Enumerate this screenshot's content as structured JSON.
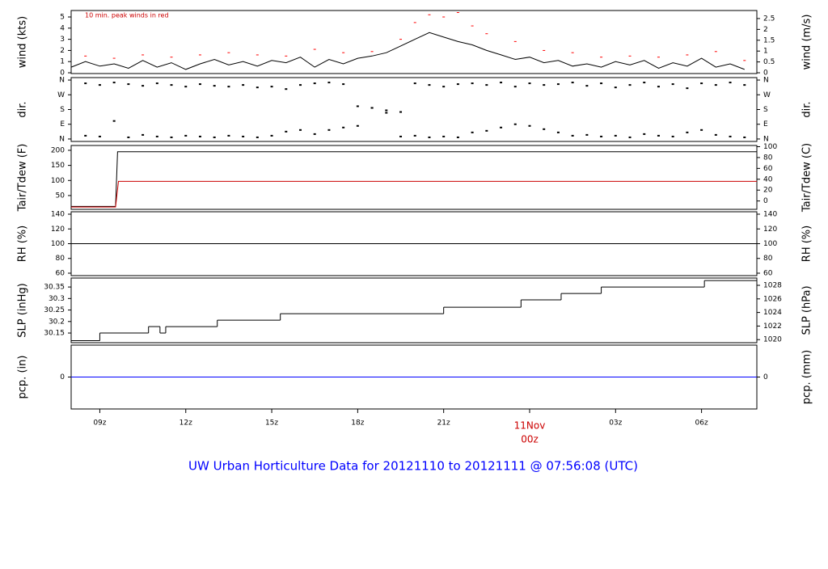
{
  "title": "UW Urban Horticulture Data for 20121110  to  20121111 @ 07:56:08  (UTC)",
  "chart_data": [
    {
      "type": "line",
      "ylabel": "wind (kts)",
      "y2label": "wind (m/s)",
      "annotation": "10 min. peak winds in red",
      "xlim": [
        8,
        31.93
      ],
      "ylim": [
        -0.07,
        5.58
      ],
      "yticks": [
        0,
        1,
        2,
        3,
        4,
        5
      ],
      "y2lim": [
        -0.036,
        2.87
      ],
      "y2ticks": [
        0,
        0.5,
        1,
        1.5,
        2,
        2.5
      ],
      "series": [
        {
          "style": "line",
          "color": "#000000",
          "x": [
            8,
            8.5,
            9,
            9.5,
            10,
            10.5,
            11,
            11.5,
            12,
            12.5,
            13,
            13.5,
            14,
            14.5,
            15,
            15.5,
            16,
            16.5,
            17,
            17.5,
            18,
            18.5,
            19,
            19.5,
            20,
            20.5,
            21,
            21.5,
            22,
            22.5,
            23,
            23.5,
            24,
            24.5,
            25,
            25.5,
            26,
            26.5,
            27,
            27.5,
            28,
            28.5,
            29,
            29.5,
            30,
            30.5,
            31,
            31.5
          ],
          "values": [
            0.5,
            1.0,
            0.6,
            0.8,
            0.4,
            1.1,
            0.5,
            0.9,
            0.3,
            0.8,
            1.2,
            0.7,
            1.0,
            0.6,
            1.1,
            0.9,
            1.4,
            0.5,
            1.2,
            0.8,
            1.3,
            1.5,
            1.8,
            2.4,
            3.0,
            3.6,
            3.2,
            2.8,
            2.5,
            2.0,
            1.6,
            1.2,
            1.4,
            0.9,
            1.1,
            0.6,
            0.8,
            0.5,
            1.0,
            0.7,
            1.1,
            0.4,
            0.9,
            0.6,
            1.3,
            0.5,
            0.8,
            0.3
          ]
        },
        {
          "style": "dash",
          "color": "#ff0000",
          "x": [
            8.5,
            9.5,
            10.5,
            11.5,
            12.5,
            13.5,
            14.5,
            15.5,
            16.5,
            17.5,
            18.5,
            19.5,
            20,
            20.5,
            21,
            21.5,
            22,
            22.5,
            23.5,
            24.5,
            25.5,
            26.5,
            27.5,
            28.5,
            29.5,
            30.5,
            31.5
          ],
          "values": [
            1.5,
            1.3,
            1.6,
            1.4,
            1.6,
            1.8,
            1.6,
            1.5,
            2.1,
            1.8,
            1.9,
            3.0,
            4.5,
            5.2,
            5.0,
            5.4,
            4.2,
            3.5,
            2.8,
            2.0,
            1.8,
            1.4,
            1.5,
            1.4,
            1.6,
            1.9,
            1.1
          ]
        }
      ]
    },
    {
      "type": "scatter",
      "ylabel": "dir.",
      "y2label": "dir.",
      "xlim": [
        8,
        31.93
      ],
      "ylim": [
        -15,
        375
      ],
      "yticks": [
        {
          "value": 0,
          "label": "N"
        },
        {
          "value": 90,
          "label": "E"
        },
        {
          "value": 180,
          "label": "S"
        },
        {
          "value": 270,
          "label": "W"
        },
        {
          "value": 360,
          "label": "N"
        }
      ],
      "y2lim": [
        -15,
        375
      ],
      "y2ticks": [
        {
          "value": 0,
          "label": "N"
        },
        {
          "value": 90,
          "label": "E"
        },
        {
          "value": 180,
          "label": "S"
        },
        {
          "value": 270,
          "label": "W"
        },
        {
          "value": 360,
          "label": "N"
        }
      ],
      "series": [
        {
          "style": "dot",
          "color": "#000000",
          "x": [
            8.5,
            9,
            9.5,
            10,
            10.5,
            11,
            11.5,
            12,
            12.5,
            13,
            13.5,
            14,
            14.5,
            15,
            15.5,
            16,
            16.5,
            17,
            17.5,
            18,
            18.5,
            19,
            19.5,
            20,
            20.5,
            21,
            21.5,
            22,
            22.5,
            23,
            23.5,
            24,
            24.5,
            25,
            25.5,
            26,
            26.5,
            27,
            27.5,
            28,
            28.5,
            29,
            29.5,
            30,
            30.5,
            31,
            31.5
          ],
          "values": [
            340,
            330,
            345,
            335,
            325,
            340,
            330,
            320,
            335,
            325,
            320,
            330,
            315,
            320,
            305,
            330,
            340,
            345,
            335,
            200,
            190,
            175,
            165,
            340,
            330,
            320,
            335,
            340,
            330,
            345,
            320,
            340,
            330,
            335,
            345,
            325,
            340,
            315,
            330,
            345,
            320,
            335,
            310,
            340,
            330,
            345,
            330
          ]
        },
        {
          "style": "dot",
          "color": "#000000",
          "x": [
            8.5,
            9,
            9.5,
            10,
            10.5,
            11,
            11.5,
            12,
            12.5,
            13,
            13.5,
            14,
            14.5,
            15,
            15.5,
            16,
            16.5,
            17,
            17.5,
            18,
            18.5,
            19,
            19.5,
            20,
            20.5,
            21,
            21.5,
            22,
            22.5,
            23,
            23.5,
            24,
            24.5,
            25,
            25.5,
            26,
            26.5,
            27,
            27.5,
            28,
            28.5,
            29,
            29.5,
            30,
            30.5,
            31,
            31.5
          ],
          "values": [
            20,
            15,
            110,
            10,
            25,
            15,
            10,
            20,
            15,
            10,
            20,
            15,
            10,
            20,
            45,
            55,
            30,
            55,
            70,
            80,
            190,
            160,
            15,
            20,
            10,
            15,
            10,
            40,
            50,
            70,
            90,
            80,
            60,
            40,
            20,
            25,
            15,
            20,
            10,
            30,
            20,
            15,
            40,
            55,
            25,
            15,
            10
          ]
        }
      ]
    },
    {
      "type": "line",
      "ylabel": "Tair/Tdew (F)",
      "y2label": "Tair/Tdew (C)",
      "xlim": [
        8,
        31.93
      ],
      "ylim": [
        4.3,
        216
      ],
      "yticks": [
        50,
        100,
        150,
        200
      ],
      "y2lim": [
        -15.4,
        102.2
      ],
      "y2ticks": [
        0,
        20,
        40,
        60,
        80,
        100
      ],
      "series": [
        {
          "style": "line",
          "color": "#000000",
          "x": [
            8,
            9.55,
            9.62,
            12,
            16,
            20,
            24,
            28,
            31.93
          ],
          "values": [
            14,
            14,
            195,
            195,
            195,
            195,
            195,
            195,
            195
          ]
        },
        {
          "style": "line",
          "color": "#cc0000",
          "x": [
            8,
            9.55,
            9.65,
            31.93
          ],
          "values": [
            12,
            12,
            97,
            97
          ]
        }
      ]
    },
    {
      "type": "line",
      "ylabel": "RH (%)",
      "y2label": "RH (%)",
      "xlim": [
        8,
        31.93
      ],
      "ylim": [
        56.7,
        143.3
      ],
      "yticks": [
        60,
        80,
        100,
        120,
        140
      ],
      "y2lim": [
        56.7,
        143.3
      ],
      "y2ticks": [
        60,
        80,
        100,
        120,
        140
      ],
      "series": [
        {
          "style": "line",
          "color": "#000000",
          "x": [
            8,
            31.93
          ],
          "values": [
            100,
            100
          ]
        }
      ]
    },
    {
      "type": "line",
      "ylabel": "SLP (inHg)",
      "y2label": "SLP (hPa)",
      "xlim": [
        8,
        31.93
      ],
      "ylim": [
        30.108,
        30.389
      ],
      "yticks": [
        30.15,
        30.2,
        30.25,
        30.3,
        30.35
      ],
      "y2lim": [
        1019.55,
        1029.07
      ],
      "y2ticks": [
        1020,
        1022,
        1024,
        1026,
        1028
      ],
      "series": [
        {
          "style": "step",
          "color": "#000000",
          "x": [
            8,
            9,
            10.7,
            11.1,
            11.3,
            13.1,
            15.3,
            21,
            23.7,
            25.1,
            26.5,
            30.1
          ],
          "values": [
            30.117,
            30.15,
            30.178,
            30.15,
            30.178,
            30.206,
            30.234,
            30.262,
            30.294,
            30.322,
            30.35,
            30.378
          ]
        }
      ]
    },
    {
      "type": "line",
      "ylabel": "pcp. (in)",
      "y2label": "pcp. (mm)",
      "xlim": [
        8,
        31.93
      ],
      "ylim": [
        -1,
        1
      ],
      "yticks": [
        0
      ],
      "y2lim": [
        -25.4,
        25.4
      ],
      "y2ticks": [
        0
      ],
      "xticks": [
        {
          "value": 9,
          "label": "09z"
        },
        {
          "value": 12,
          "label": "12z"
        },
        {
          "value": 15,
          "label": "15z"
        },
        {
          "value": 18,
          "label": "18z"
        },
        {
          "value": 21,
          "label": "21z"
        },
        {
          "value": 24,
          "label": "00z"
        },
        {
          "value": 27,
          "label": "03z"
        },
        {
          "value": 30,
          "label": "06z"
        }
      ],
      "date_marker": {
        "value": 24,
        "label": "11Nov"
      },
      "series": [
        {
          "style": "line",
          "color": "#0000ff",
          "x": [
            8,
            31.93
          ],
          "values": [
            0,
            0
          ]
        }
      ]
    }
  ]
}
